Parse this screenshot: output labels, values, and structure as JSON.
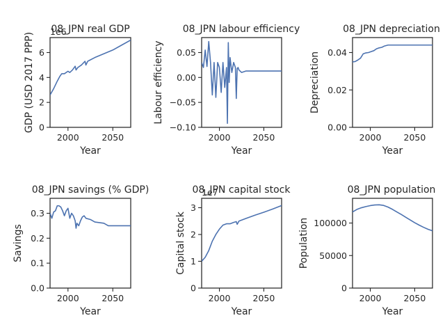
{
  "chart_data": [
    {
      "type": "line",
      "title": "08_JPN real GDP",
      "xlabel": "Year",
      "ylabel": "GDP (USD 2017 PPP)",
      "multiplier": "1e6",
      "xlim": [
        1980,
        2070
      ],
      "ylim": [
        0,
        7.2
      ],
      "xticks": [
        2000,
        2050
      ],
      "yticks": [
        0,
        2,
        4,
        6
      ],
      "ytick_labels": [
        "0",
        "2",
        "4",
        "6"
      ],
      "color": "#4c72b0",
      "series": [
        {
          "x": [
            1980,
            1984,
            1988,
            1991,
            1993,
            1996,
            2000,
            2002,
            2005,
            2008,
            2009,
            2011,
            2015,
            2019,
            2020,
            2022,
            2030,
            2040,
            2050,
            2060,
            2070
          ],
          "values": [
            2.6,
            3.1,
            3.7,
            4.1,
            4.3,
            4.3,
            4.5,
            4.4,
            4.6,
            4.9,
            4.6,
            4.8,
            5.0,
            5.3,
            5.0,
            5.3,
            5.6,
            5.9,
            6.2,
            6.6,
            7.0
          ]
        }
      ]
    },
    {
      "type": "line",
      "title": "08_JPN labour efficiency",
      "xlabel": "Year",
      "ylabel": "Labour efficiency",
      "xlim": [
        1980,
        2070
      ],
      "ylim": [
        -0.1,
        0.08
      ],
      "xticks": [
        2000,
        2050
      ],
      "yticks": [
        -0.1,
        -0.05,
        0.0,
        0.05
      ],
      "ytick_labels": [
        "−0.10",
        "−0.05",
        "0.00",
        "0.05"
      ],
      "color": "#4c72b0",
      "series": [
        {
          "x": [
            1980,
            1982,
            1984,
            1986,
            1988,
            1990,
            1992,
            1994,
            1996,
            1998,
            2000,
            2002,
            2004,
            2006,
            2008,
            2009,
            2010,
            2011,
            2012,
            2014,
            2016,
            2018,
            2019,
            2020,
            2021,
            2022,
            2025,
            2030,
            2040,
            2050,
            2060,
            2070
          ],
          "values": [
            0.03,
            0.02,
            0.055,
            0.022,
            0.072,
            0.03,
            -0.035,
            0.03,
            -0.04,
            0.03,
            0.02,
            -0.03,
            0.03,
            -0.02,
            0.02,
            -0.092,
            0.07,
            -0.01,
            0.04,
            0.01,
            0.03,
            0.02,
            -0.042,
            0.018,
            0.02,
            0.015,
            0.01,
            0.013,
            0.013,
            0.013,
            0.013,
            0.013
          ]
        }
      ]
    },
    {
      "type": "line",
      "title": "08_JPN depreciation",
      "xlabel": "Year",
      "ylabel": "Depreciation",
      "xlim": [
        1980,
        2070
      ],
      "ylim": [
        0,
        0.048
      ],
      "xticks": [
        2000,
        2050
      ],
      "yticks": [
        0,
        0.02,
        0.04
      ],
      "ytick_labels": [
        "0.00",
        "0.02",
        "0.04"
      ],
      "color": "#4c72b0",
      "series": [
        {
          "x": [
            1980,
            1983,
            1986,
            1989,
            1992,
            1995,
            1998,
            2001,
            2004,
            2007,
            2010,
            2013,
            2016,
            2020,
            2030,
            2040,
            2050,
            2060,
            2070
          ],
          "values": [
            0.035,
            0.0352,
            0.036,
            0.037,
            0.0393,
            0.0398,
            0.04,
            0.0405,
            0.041,
            0.042,
            0.0425,
            0.0428,
            0.0435,
            0.044,
            0.044,
            0.044,
            0.044,
            0.044,
            0.044
          ]
        }
      ]
    },
    {
      "type": "line",
      "title": "08_JPN savings (% GDP)",
      "xlabel": "Year",
      "ylabel": "Savings",
      "xlim": [
        1980,
        2070
      ],
      "ylim": [
        0,
        0.36
      ],
      "xticks": [
        2000,
        2050
      ],
      "yticks": [
        0,
        0.1,
        0.2,
        0.3
      ],
      "ytick_labels": [
        "0.0",
        "0.1",
        "0.2",
        "0.3"
      ],
      "color": "#4c72b0",
      "series": [
        {
          "x": [
            1980,
            1982,
            1984,
            1986,
            1988,
            1990,
            1992,
            1994,
            1996,
            1998,
            2000,
            2002,
            2004,
            2006,
            2008,
            2009,
            2010,
            2012,
            2014,
            2016,
            2018,
            2020,
            2025,
            2030,
            2040,
            2045,
            2050,
            2060,
            2070
          ],
          "values": [
            0.3,
            0.28,
            0.305,
            0.31,
            0.33,
            0.33,
            0.325,
            0.31,
            0.29,
            0.31,
            0.32,
            0.28,
            0.3,
            0.29,
            0.27,
            0.24,
            0.26,
            0.25,
            0.27,
            0.285,
            0.29,
            0.28,
            0.275,
            0.265,
            0.26,
            0.25,
            0.25,
            0.25,
            0.25
          ]
        }
      ]
    },
    {
      "type": "line",
      "title": "08_JPN capital stock",
      "xlabel": "Year",
      "ylabel": "Capital stock",
      "multiplier": "1e7",
      "xlim": [
        1980,
        2070
      ],
      "ylim": [
        0,
        3.35
      ],
      "xticks": [
        2000,
        2050
      ],
      "yticks": [
        0,
        1,
        2,
        3
      ],
      "ytick_labels": [
        "0",
        "1",
        "2",
        "3"
      ],
      "color": "#4c72b0",
      "series": [
        {
          "x": [
            1980,
            1984,
            1988,
            1992,
            1996,
            2000,
            2004,
            2008,
            2012,
            2016,
            2019,
            2020,
            2022,
            2030,
            2040,
            2050,
            2060,
            2070
          ],
          "values": [
            1.0,
            1.15,
            1.4,
            1.75,
            2.0,
            2.2,
            2.35,
            2.4,
            2.4,
            2.45,
            2.48,
            2.38,
            2.5,
            2.6,
            2.72,
            2.83,
            2.95,
            3.08
          ]
        }
      ]
    },
    {
      "type": "line",
      "title": "08_JPN population",
      "xlabel": "Year",
      "ylabel": "Population",
      "xlim": [
        1980,
        2070
      ],
      "ylim": [
        0,
        138000
      ],
      "xticks": [
        2000,
        2050
      ],
      "yticks": [
        0,
        50000,
        100000
      ],
      "ytick_labels": [
        "0",
        "50000",
        "100000"
      ],
      "color": "#4c72b0",
      "series": [
        {
          "x": [
            1980,
            1985,
            1990,
            1995,
            2000,
            2005,
            2010,
            2015,
            2020,
            2025,
            2030,
            2035,
            2040,
            2045,
            2050,
            2055,
            2060,
            2065,
            2070
          ],
          "values": [
            117000,
            121000,
            123500,
            125300,
            126800,
            127800,
            128000,
            127100,
            124500,
            121000,
            117000,
            113000,
            108800,
            104600,
            100500,
            96800,
            93400,
            90400,
            88000
          ]
        }
      ]
    }
  ]
}
